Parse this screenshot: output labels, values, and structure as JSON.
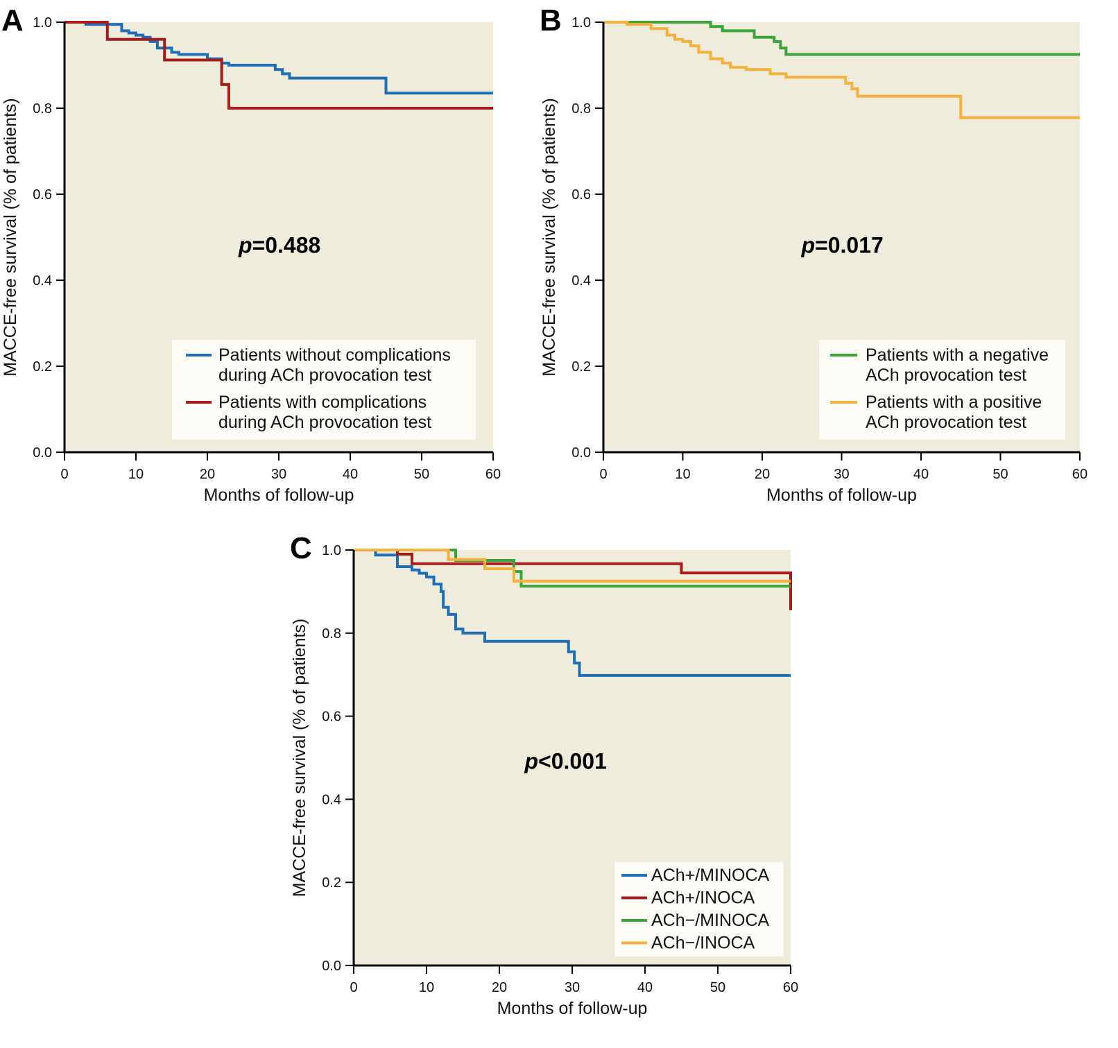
{
  "colors": {
    "plot_bg": "#f0ecdc",
    "legend_bg": "#fcfbf5",
    "blue": "#1e6fb8",
    "red": "#a81b1b",
    "green": "#3aa53a",
    "orange": "#f5b13d",
    "axis": "#000000"
  },
  "chart_data": [
    {
      "id": "A",
      "type": "line",
      "step": true,
      "panel_label": "A",
      "title": "",
      "xlabel": "Months of follow-up",
      "ylabel": "MACCE-free survival (% of patients)",
      "xlim": [
        0,
        60
      ],
      "ylim": [
        0,
        1.0
      ],
      "xticks": [
        "0",
        "10",
        "20",
        "30",
        "40",
        "50",
        "60"
      ],
      "yticks": [
        "0.0",
        "0.2",
        "0.4",
        "0.6",
        "0.8",
        "1.0"
      ],
      "annotation": {
        "italic": "p",
        "text": "=0.488",
        "x": 30,
        "y": 0.48
      },
      "legend_position": "bottom-right",
      "series": [
        {
          "name": "Patients without complications during ACh provocation test",
          "legend_lines": [
            "Patients without complications",
            "during ACh provocation test"
          ],
          "color_key": "blue",
          "x": [
            0,
            3,
            8,
            9,
            10,
            11,
            12,
            13,
            15,
            16,
            20,
            22,
            23,
            29.5,
            30.5,
            31.5,
            45,
            60
          ],
          "y": [
            1.0,
            0.995,
            0.98,
            0.975,
            0.97,
            0.965,
            0.955,
            0.94,
            0.93,
            0.925,
            0.915,
            0.905,
            0.9,
            0.89,
            0.88,
            0.87,
            0.835,
            0.835
          ]
        },
        {
          "name": "Patients with complications during ACh provocation test",
          "legend_lines": [
            "Patients with complications",
            "during ACh provocation test"
          ],
          "color_key": "red",
          "x": [
            0,
            6,
            14,
            22,
            23,
            60
          ],
          "y": [
            1.0,
            0.96,
            0.912,
            0.855,
            0.8,
            0.8
          ]
        }
      ]
    },
    {
      "id": "B",
      "type": "line",
      "step": true,
      "panel_label": "B",
      "title": "",
      "xlabel": "Months of follow-up",
      "ylabel": "MACCE-free survival (% of patients)",
      "xlim": [
        0,
        60
      ],
      "ylim": [
        0,
        1.0
      ],
      "xticks": [
        "0",
        "10",
        "20",
        "30",
        "40",
        "50",
        "60"
      ],
      "yticks": [
        "0.0",
        "0.2",
        "0.4",
        "0.6",
        "0.8",
        "1.0"
      ],
      "annotation": {
        "italic": "p",
        "text": "=0.017",
        "x": 30,
        "y": 0.48
      },
      "legend_position": "bottom-right",
      "series": [
        {
          "name": "Patients with a negative ACh provocation test",
          "legend_lines": [
            "Patients with a negative",
            "ACh provocation test"
          ],
          "color_key": "green",
          "x": [
            0,
            13.5,
            15,
            19,
            21.5,
            22.3,
            23,
            60
          ],
          "y": [
            1.0,
            0.99,
            0.98,
            0.965,
            0.955,
            0.94,
            0.925,
            0.925
          ]
        },
        {
          "name": "Patients with a positive ACh provocation test",
          "legend_lines": [
            "Patients with a positive",
            "ACh provocation test"
          ],
          "color_key": "orange",
          "x": [
            0,
            3,
            6,
            8,
            9,
            10,
            11,
            12,
            13.5,
            15,
            16,
            18,
            21,
            23,
            30.5,
            31.3,
            32,
            45,
            60
          ],
          "y": [
            1.0,
            0.995,
            0.985,
            0.97,
            0.96,
            0.955,
            0.945,
            0.93,
            0.915,
            0.905,
            0.895,
            0.89,
            0.88,
            0.872,
            0.858,
            0.845,
            0.828,
            0.778,
            0.778
          ]
        }
      ]
    },
    {
      "id": "C",
      "type": "line",
      "step": true,
      "panel_label": "C",
      "title": "",
      "xlabel": "Months of follow-up",
      "ylabel": "MACCE-free survival (% of patients)",
      "xlim": [
        0,
        60
      ],
      "ylim": [
        0,
        1.0
      ],
      "xticks": [
        "0",
        "10",
        "20",
        "30",
        "40",
        "50",
        "60"
      ],
      "yticks": [
        "0.0",
        "0.2",
        "0.4",
        "0.6",
        "0.8",
        "1.0"
      ],
      "annotation": {
        "italic": "p",
        "text": "<0.001",
        "x": 29,
        "y": 0.49
      },
      "legend_position": "bottom-right",
      "series": [
        {
          "name": "ACh+/MINOCA",
          "legend_lines": [
            "ACh+/MINOCA"
          ],
          "color_key": "blue",
          "x": [
            0,
            3,
            6,
            8,
            9,
            10,
            11,
            12,
            12.3,
            13,
            14,
            15,
            18,
            29.5,
            30.3,
            31,
            60
          ],
          "y": [
            1.0,
            0.988,
            0.96,
            0.952,
            0.944,
            0.935,
            0.918,
            0.9,
            0.862,
            0.845,
            0.81,
            0.8,
            0.78,
            0.755,
            0.728,
            0.698,
            0.698
          ]
        },
        {
          "name": "ACh+/INOCA",
          "legend_lines": [
            "ACh+/INOCA"
          ],
          "color_key": "red",
          "x": [
            0,
            6,
            8,
            45,
            60
          ],
          "y": [
            1.0,
            0.99,
            0.967,
            0.945,
            0.855
          ]
        },
        {
          "name": "ACh−/MINOCA",
          "legend_lines": [
            "ACh−/MINOCA"
          ],
          "color_key": "green",
          "x": [
            0,
            14,
            22,
            23,
            60
          ],
          "y": [
            1.0,
            0.975,
            0.948,
            0.913,
            0.913
          ]
        },
        {
          "name": "ACh−/INOCA",
          "legend_lines": [
            "ACh−/INOCA"
          ],
          "color_key": "orange",
          "x": [
            0,
            13,
            18,
            22,
            60
          ],
          "y": [
            1.0,
            0.977,
            0.955,
            0.925,
            0.925
          ]
        }
      ]
    }
  ]
}
